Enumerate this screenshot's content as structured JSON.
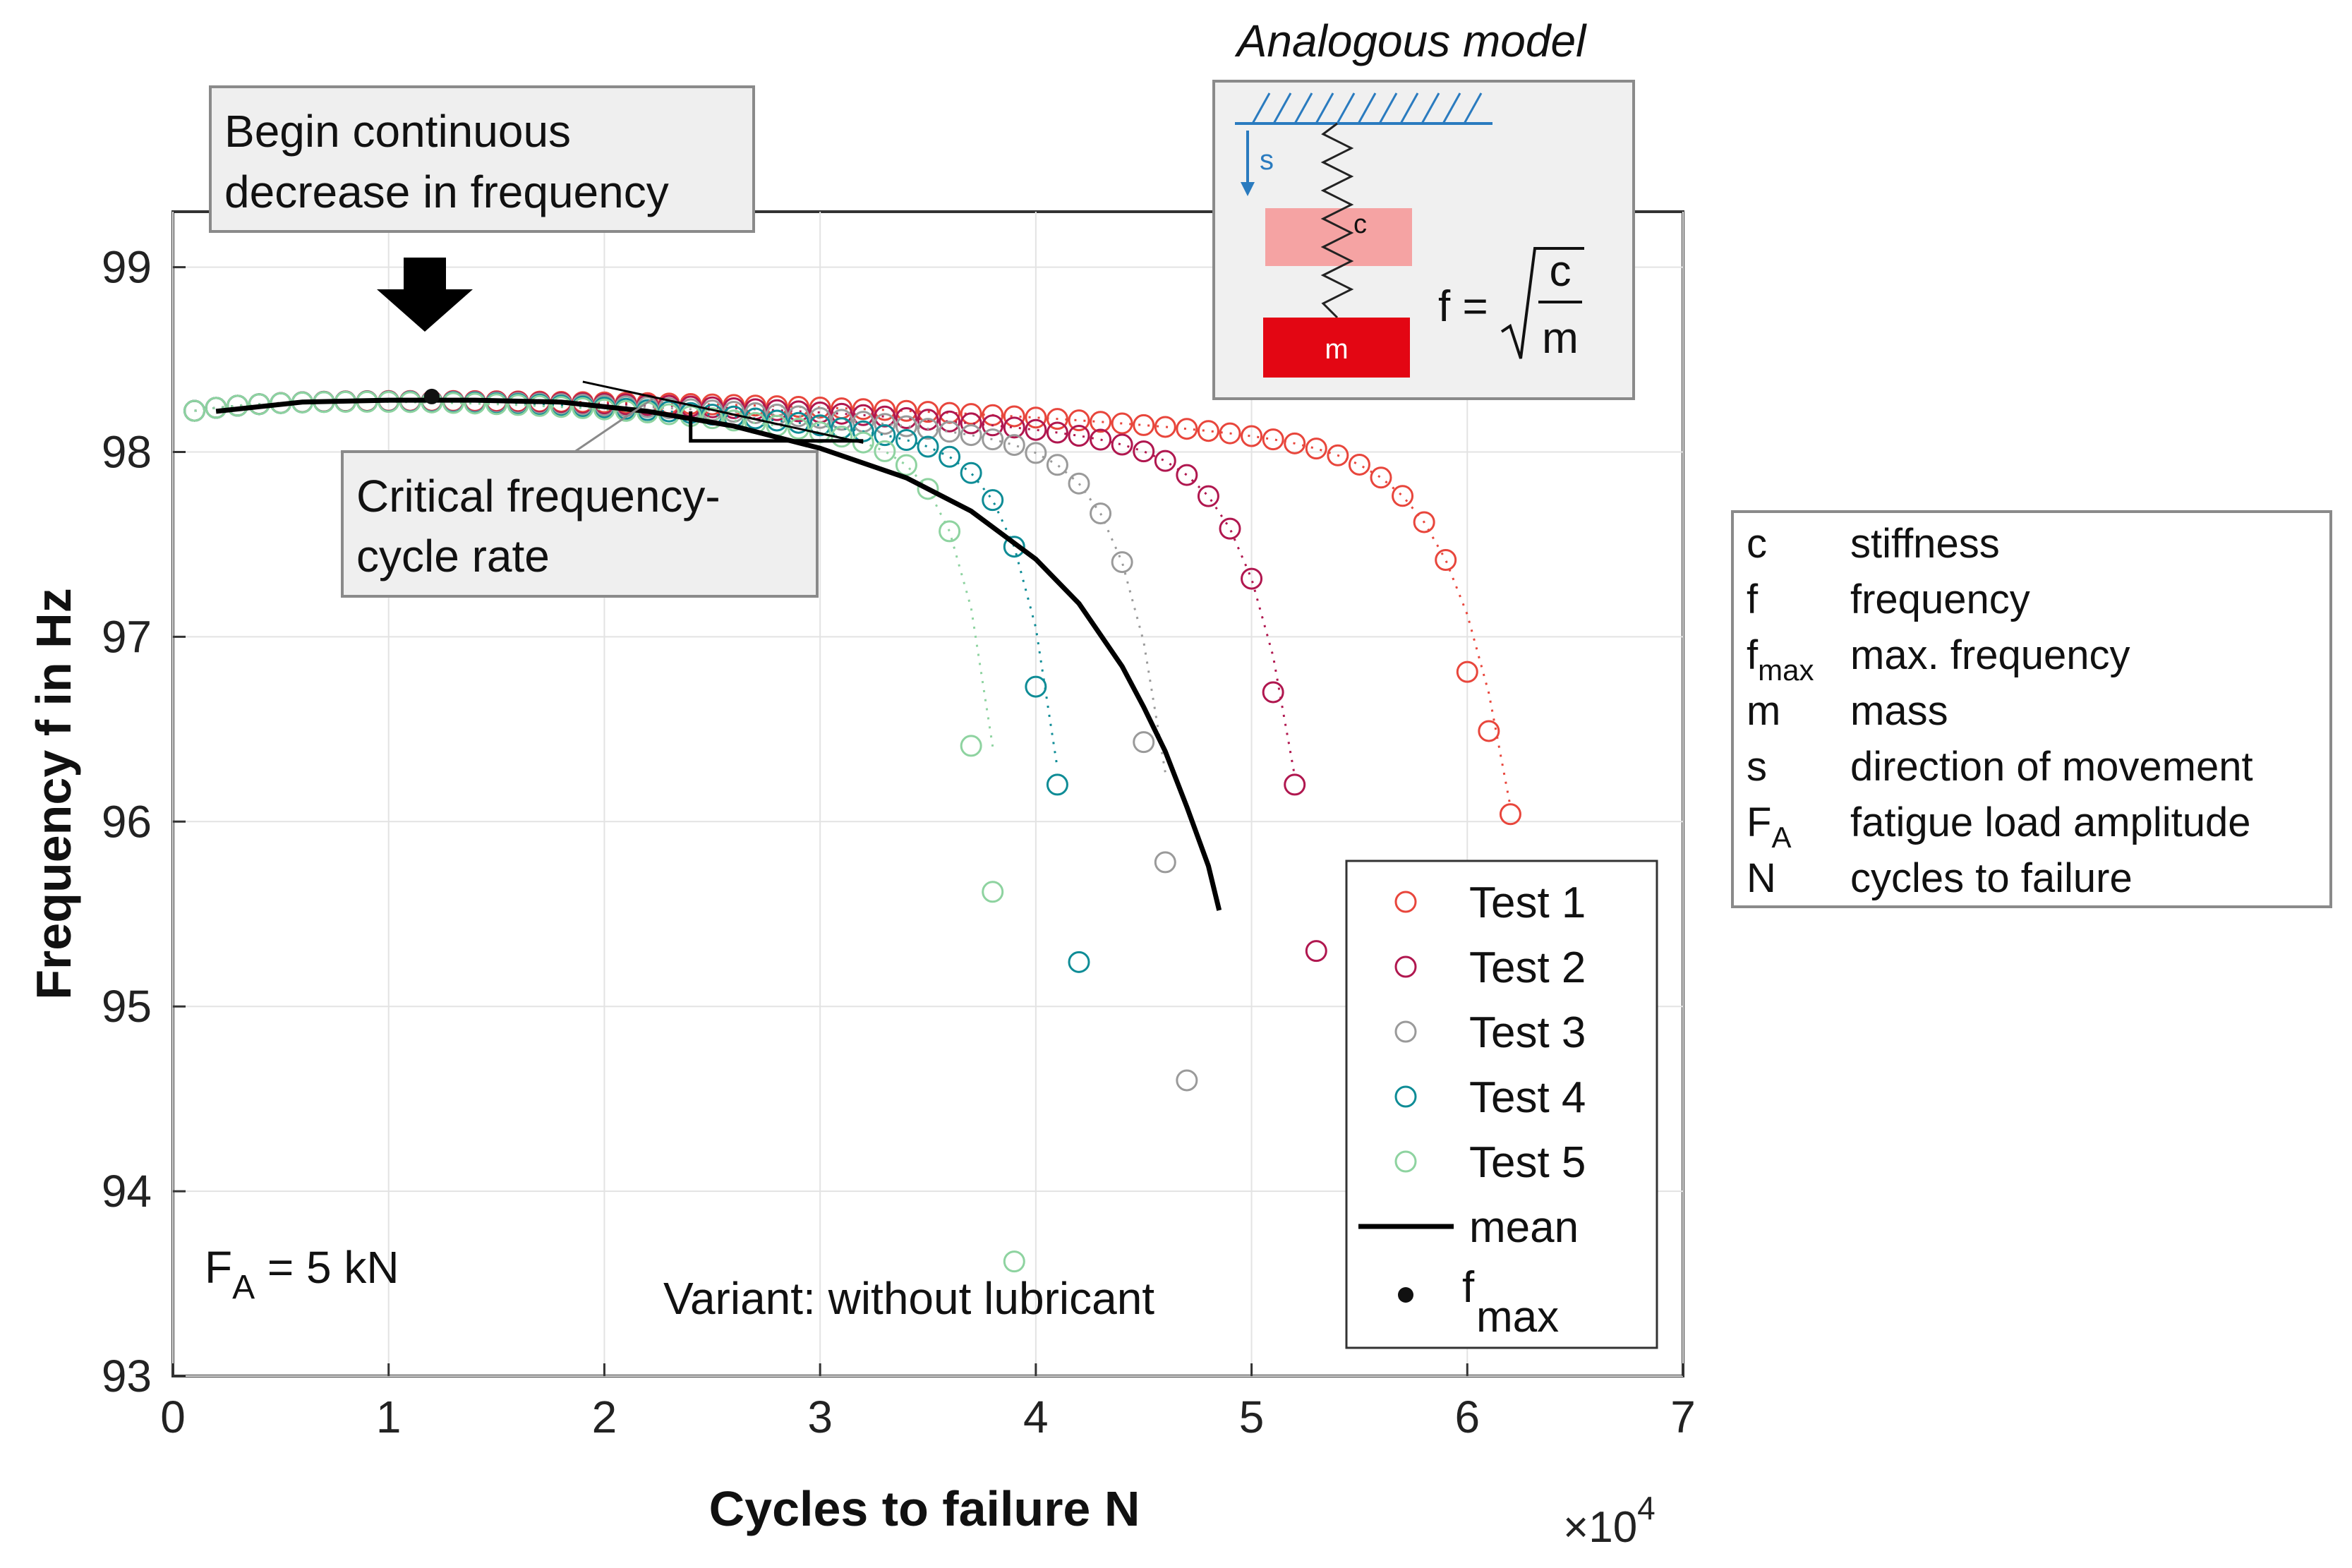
{
  "chart_data": {
    "type": "scatter",
    "title": "",
    "xlabel": "Cycles to failure N",
    "ylabel": "Frequency f in Hz",
    "x_exponent_label": "×10",
    "x_exponent_power": "4",
    "xlim": [
      0,
      70000
    ],
    "ylim": [
      93,
      99.3
    ],
    "grid": true,
    "x_ticks": [
      0,
      10000,
      20000,
      30000,
      40000,
      50000,
      60000,
      70000
    ],
    "x_tick_labels": [
      "0",
      "1",
      "2",
      "3",
      "4",
      "5",
      "6",
      "7"
    ],
    "y_ticks": [
      93,
      94,
      95,
      96,
      97,
      98,
      99
    ],
    "y_tick_labels": [
      "93",
      "94",
      "95",
      "96",
      "97",
      "98",
      "99"
    ],
    "legend_position": "bottom-right inside plot",
    "series": [
      {
        "name": "Test 1",
        "color": "#e8463c",
        "marker": "open-circle",
        "failure_N": 62000,
        "plateau": 98.28,
        "points": [
          [
            60000,
            96.81
          ],
          [
            61000,
            96.49
          ],
          [
            62000,
            96.04
          ]
        ]
      },
      {
        "name": "Test 2",
        "color": "#b0174f",
        "marker": "open-circle",
        "failure_N": 52200,
        "plateau": 98.28,
        "points": [
          [
            51000,
            96.7
          ],
          [
            52000,
            96.2
          ],
          [
            53000,
            95.3
          ]
        ]
      },
      {
        "name": "Test 3",
        "color": "#9a9a9a",
        "marker": "open-circle",
        "failure_N": 46200,
        "plateau": 98.28,
        "points": [
          [
            45000,
            96.43
          ],
          [
            46000,
            95.78
          ],
          [
            47000,
            94.6
          ]
        ]
      },
      {
        "name": "Test 4",
        "color": "#0e8c96",
        "marker": "open-circle",
        "failure_N": 41200,
        "plateau": 98.28,
        "points": [
          [
            40000,
            96.73
          ],
          [
            41000,
            96.2
          ],
          [
            42000,
            95.24
          ]
        ]
      },
      {
        "name": "Test 5",
        "color": "#8ed3a0",
        "marker": "open-circle",
        "failure_N": 38300,
        "plateau": 98.28,
        "points": [
          [
            37000,
            96.41
          ],
          [
            38000,
            95.62
          ],
          [
            39000,
            93.62
          ]
        ]
      },
      {
        "name": "mean",
        "color": "#000000",
        "marker": "line",
        "points": [
          [
            2000,
            98.22
          ],
          [
            6000,
            98.27
          ],
          [
            10000,
            98.28
          ],
          [
            14000,
            98.28
          ],
          [
            18000,
            98.27
          ],
          [
            22000,
            98.22
          ],
          [
            26000,
            98.14
          ],
          [
            30000,
            98.02
          ],
          [
            34000,
            97.86
          ],
          [
            37000,
            97.68
          ],
          [
            40000,
            97.42
          ],
          [
            42000,
            97.18
          ],
          [
            44000,
            96.84
          ],
          [
            45000,
            96.62
          ],
          [
            46000,
            96.38
          ],
          [
            47000,
            96.08
          ],
          [
            48000,
            95.76
          ],
          [
            48500,
            95.52
          ]
        ]
      }
    ],
    "fmax_points": [
      {
        "x": 12000,
        "y": 98.3,
        "color": "#111111"
      }
    ],
    "legend": [
      "Test 1",
      "Test 2",
      "Test 3",
      "Test 4",
      "Test 5",
      "mean",
      "f",
      "max"
    ],
    "annotations": {
      "callout_begin_line1": "Begin continuous",
      "callout_begin_line2": "decrease in frequency",
      "callout_critical_line1": "Critical frequency-",
      "callout_critical_line2": "cycle rate",
      "load_prefix": "F",
      "load_sub": "A",
      "load_value": " = 5 kN",
      "variant": "Variant: without lubricant"
    }
  },
  "model": {
    "title": "Analogous model",
    "s_label": "s",
    "c_label": "c",
    "m_label": "m",
    "formula_lhs": "f =",
    "formula_num": "c",
    "formula_den": "m"
  },
  "symbols": [
    {
      "sym": "c",
      "sub": "",
      "desc": "stiffness"
    },
    {
      "sym": "f",
      "sub": "",
      "desc": "frequency"
    },
    {
      "sym": "f",
      "sub": "max",
      "desc": "max. frequency"
    },
    {
      "sym": "m",
      "sub": "",
      "desc": "mass"
    },
    {
      "sym": "s",
      "sub": "",
      "desc": "direction of movement"
    },
    {
      "sym": "F",
      "sub": "A",
      "desc": "fatigue load amplitude"
    },
    {
      "sym": "N",
      "sub": "",
      "desc": "cycles to failure"
    }
  ],
  "colors": {
    "grid": "#e3e3e3",
    "axis": "#333333",
    "callout_bg": "#efefef",
    "callout_border": "#8a8a8a",
    "model_bg": "#f0f0f0",
    "mass_top": "#f5a3a3",
    "mass_bottom": "#e30613",
    "ground": "#2a7bbf"
  }
}
